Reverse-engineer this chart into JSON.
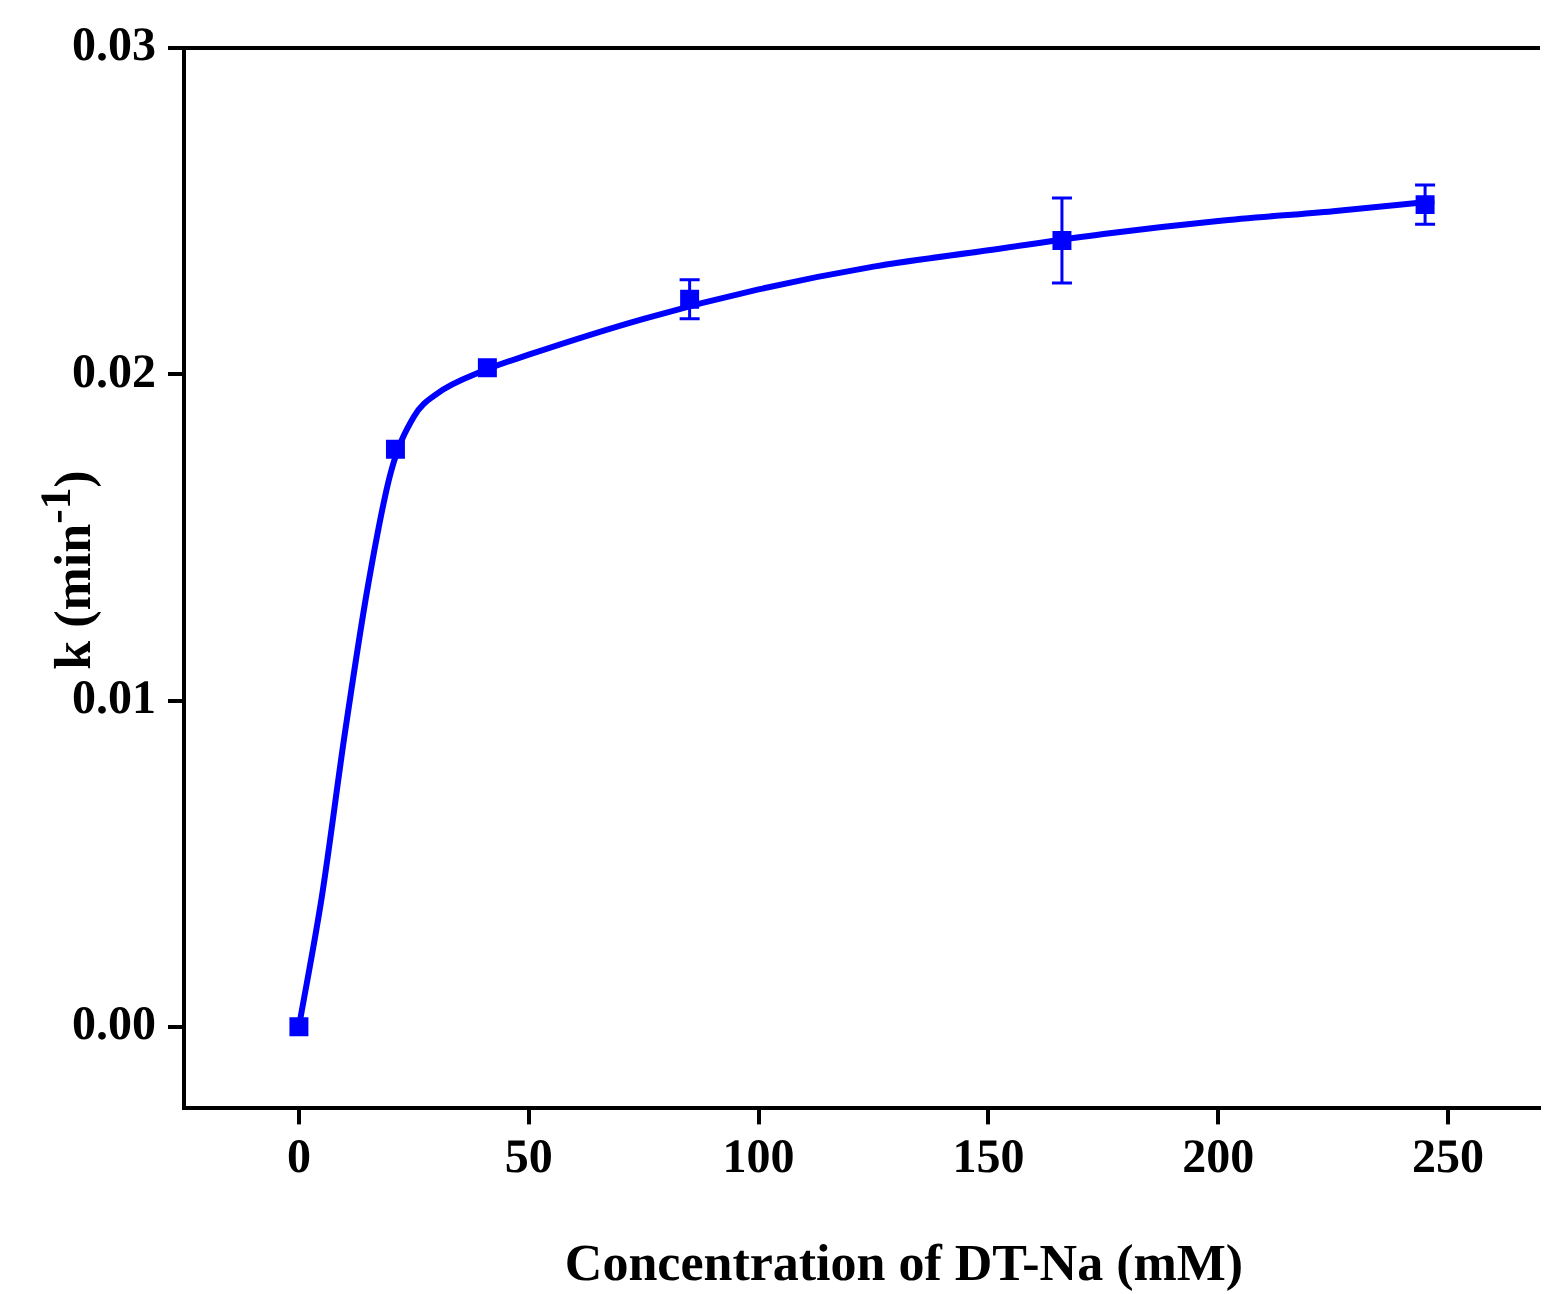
{
  "chart_data": {
    "type": "scatter",
    "xlabel": "Concentration of DT-Na (mM)",
    "ylabel": "k (min$^{-1}$)",
    "xlim": [
      -25,
      270
    ],
    "xticks": [
      0,
      50,
      100,
      150,
      200,
      250
    ],
    "ylim": [
      -0.0025,
      0.03
    ],
    "yticks": [
      {
        "value": 0,
        "label": "0.00"
      },
      {
        "value": 0.01,
        "label": "0.01"
      },
      {
        "value": 0.02,
        "label": "0.02"
      },
      {
        "value": 0.03,
        "label": "0.03"
      }
    ],
    "grid": false,
    "legend": false,
    "series": [
      {
        "marker": "square",
        "color": "#0000ff",
        "x": [
          0,
          21,
          41,
          85,
          166,
          245
        ],
        "values": [
          0,
          0.0177,
          0.0202,
          0.0223,
          0.0241,
          0.0252
        ],
        "errors": [
          null,
          null,
          null,
          0.0006,
          0.0013,
          0.0006
        ]
      },
      {
        "type": "line",
        "color": "#0000ff",
        "x": [
          0,
          5,
          10,
          15,
          20,
          25,
          30,
          40,
          50,
          75,
          100,
          125,
          150,
          175,
          200,
          225,
          247
        ],
        "values": [
          0,
          0.004,
          0.009,
          0.0135,
          0.017,
          0.0187,
          0.0194,
          0.0201,
          0.0206,
          0.0217,
          0.0226,
          0.0233,
          0.0238,
          0.0243,
          0.0247,
          0.025,
          0.0253
        ]
      }
    ]
  }
}
